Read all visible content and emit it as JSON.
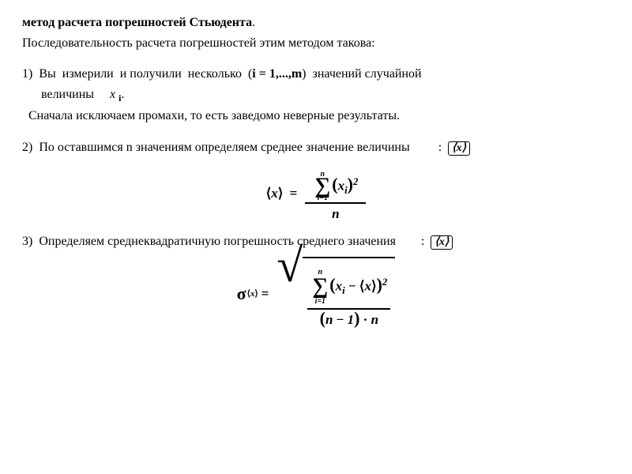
{
  "title_prefix": "метод расчета погрешностей Стьюдента",
  "title_suffix": ".",
  "intro": "Последовательность расчета погрешностей этим методом такова:",
  "item1_prefix": "1)  Вы  измерили  и получили  несколько  (",
  "item1_bold1": "i = 1,...,m",
  "item1_mid": ")  значений случайной",
  "item1_line2a": "      величины     ",
  "item1_x": "x",
  "item1_i": "i",
  "item1_period": ".",
  "item1_note": "  Сначала исключаем промахи, то есть заведомо неверные результаты.",
  "item2": "2)  По оставшимся n значениям определяем среднее значение величины         :",
  "item3": "3)  Определяем среднеквадратичную погрешность среднего значения        :",
  "angle_x": "x",
  "formula1": {
    "lhs_open": "⟨",
    "lhs_x": "x",
    "lhs_close": "⟩",
    "eq": "=",
    "sum_upper": "n",
    "sum_lower": "i=1",
    "term_open": "(",
    "term_x": "x",
    "term_i": "i",
    "term_close": ")",
    "term_pow": "2",
    "denom": "n"
  },
  "formula2": {
    "sigma": "σ",
    "sub_open": "⟨",
    "sub_x": "x",
    "sub_close": "⟩",
    "eq": "=",
    "sum_upper": "n",
    "sum_lower": "i=1",
    "diff_open": "(",
    "xi_x": "x",
    "xi_i": "i",
    "minus": "−",
    "avg_open": "⟨",
    "avg_x": "x",
    "avg_close": "⟩",
    "diff_close": ")",
    "pow": "2",
    "den_open": "(",
    "den_n": "n",
    "den_minus": "−",
    "den_1": "1",
    "den_close": ")",
    "den_dot": "·",
    "den_n2": "n"
  },
  "colors": {
    "bg": "#ffffff",
    "text": "#000000"
  }
}
